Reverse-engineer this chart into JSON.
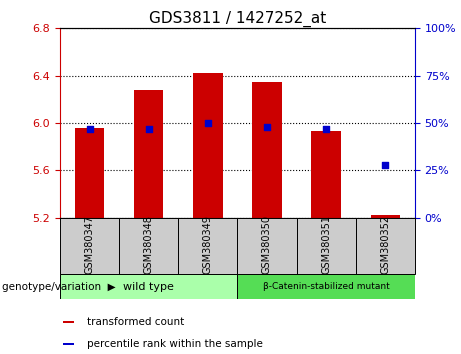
{
  "title": "GDS3811 / 1427252_at",
  "samples": [
    "GSM380347",
    "GSM380348",
    "GSM380349",
    "GSM380350",
    "GSM380351",
    "GSM380352"
  ],
  "bar_bottom": 5.2,
  "bar_tops": [
    5.96,
    6.28,
    6.42,
    6.35,
    5.93,
    5.22
  ],
  "percentile_values": [
    47,
    47,
    50,
    48,
    47,
    28
  ],
  "ylim_left": [
    5.2,
    6.8
  ],
  "ylim_right": [
    0,
    100
  ],
  "yticks_left": [
    5.2,
    5.6,
    6.0,
    6.4,
    6.8
  ],
  "yticks_right": [
    0,
    25,
    50,
    75,
    100
  ],
  "bar_color": "#cc0000",
  "dot_color": "#0000cc",
  "group1_label": "wild type",
  "group2_label": "β-Catenin-stabilized mutant",
  "group1_indices": [
    0,
    1,
    2
  ],
  "group2_indices": [
    3,
    4,
    5
  ],
  "group1_bg": "#aaffaa",
  "group2_bg": "#55dd55",
  "sample_bg": "#cccccc",
  "genotype_label": "genotype/variation",
  "legend_items": [
    "transformed count",
    "percentile rank within the sample"
  ],
  "legend_colors": [
    "#cc0000",
    "#0000cc"
  ],
  "title_fontsize": 11,
  "tick_fontsize": 8,
  "label_fontsize": 8
}
